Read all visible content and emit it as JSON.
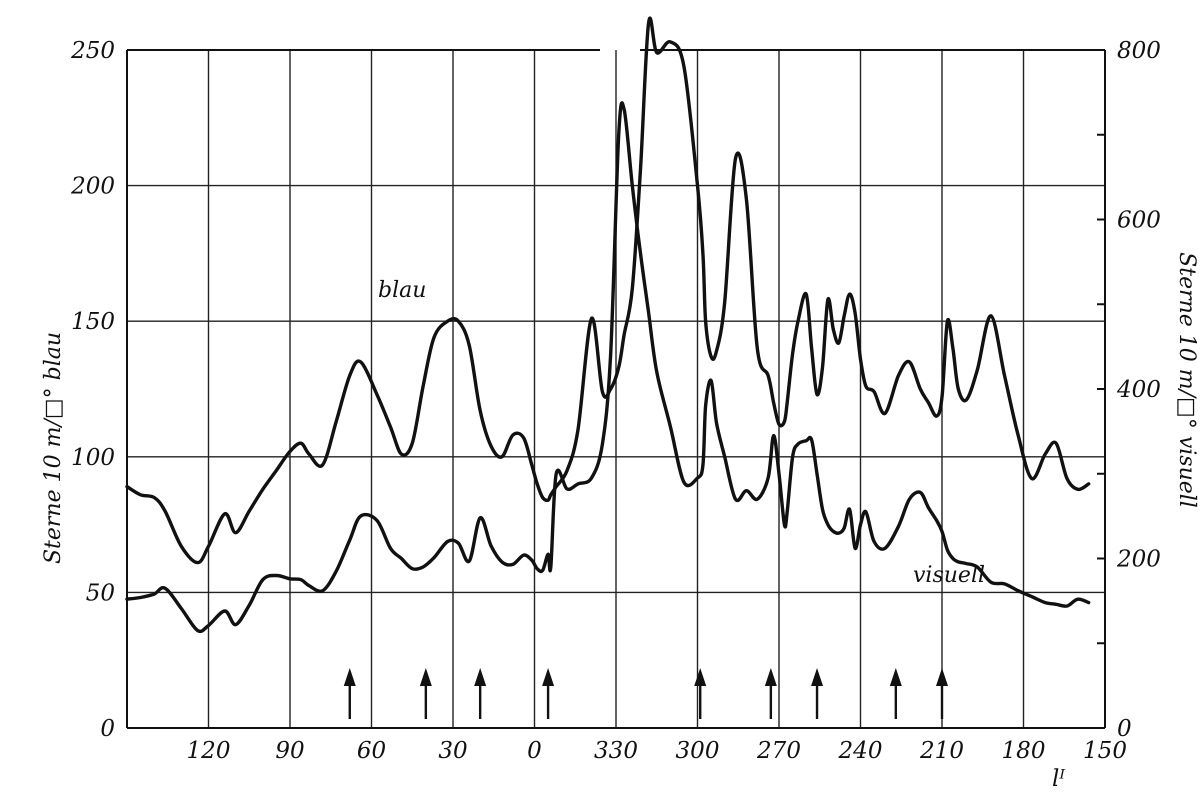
{
  "chart_data": {
    "type": "line",
    "x_axis": {
      "label": "lᴵ",
      "reversed_wrap": true,
      "tick_labels": [
        "120",
        "90",
        "60",
        "30",
        "0",
        "330",
        "300",
        "270",
        "240",
        "210",
        "180",
        "150"
      ],
      "range_label_left": "150 (wrapping through 0 to 330)",
      "grid": true
    },
    "y_left": {
      "label": "Sterne 10 m/□° blau",
      "ylim": [
        0,
        250
      ],
      "ticks": [
        "0",
        "50",
        "100",
        "150",
        "200",
        "250"
      ]
    },
    "y_right": {
      "label": "Sterne 10 m/□° visuell",
      "ylim": [
        0,
        800
      ],
      "ticks": [
        "0",
        "200",
        "400",
        "600",
        "800"
      ]
    },
    "series": [
      {
        "name": "blau",
        "axis": "left",
        "x": [
          150,
          145,
          140,
          136,
          130,
          124,
          120,
          114,
          110,
          105,
          100,
          95,
          90,
          86,
          83,
          78,
          73,
          68,
          64,
          58,
          53,
          49,
          45,
          41,
          37,
          32,
          28,
          24,
          20,
          16,
          12,
          8,
          4,
          1,
          -1,
          -3,
          -5,
          -6,
          -8,
          -12,
          -16,
          -21,
          -25,
          -28,
          -31,
          -33,
          -36,
          -39,
          -42,
          -45,
          -50,
          -55,
          -60,
          -62,
          -63,
          -65,
          -67,
          -70,
          -74,
          -78,
          -82,
          -86,
          -88,
          -90,
          -92,
          -93,
          -95,
          -97,
          -100,
          -102,
          -104,
          -106,
          -108,
          -110,
          -112,
          -114,
          -116,
          -118,
          -120,
          -122,
          -125,
          -129,
          -134,
          -138,
          -142,
          -145,
          -148,
          -150,
          -152,
          -154,
          -156,
          -159,
          -163,
          -168,
          -173,
          -178,
          -183,
          -188,
          -192,
          -196,
          -200,
          -204
        ],
        "values": [
          89,
          86,
          85,
          80,
          67,
          61,
          67,
          79,
          72,
          80,
          88,
          95,
          102,
          105,
          101,
          97,
          113,
          130,
          135,
          123,
          111,
          101,
          105,
          126,
          144,
          150,
          150,
          141,
          117,
          104,
          100,
          108,
          107,
          97,
          90,
          85,
          84,
          86,
          89,
          95,
          110,
          151,
          124,
          125,
          133,
          145,
          162,
          206,
          260,
          249,
          253,
          244,
          200,
          175,
          150,
          137,
          139,
          157,
          210,
          195,
          140,
          130,
          120,
          112,
          113,
          120,
          138,
          150,
          160,
          140,
          123,
          133,
          158,
          147,
          142,
          152,
          160,
          153,
          136,
          126,
          124,
          116,
          130,
          135,
          125,
          120,
          115,
          122,
          150,
          140,
          125,
          121,
          132,
          152,
          130,
          108,
          92,
          101,
          105,
          92,
          88,
          90
        ]
      },
      {
        "name": "visuell",
        "axis": "right",
        "x": [
          150,
          145,
          140,
          136,
          130,
          124,
          120,
          114,
          110,
          105,
          100,
          95,
          90,
          86,
          83,
          78,
          73,
          68,
          64,
          58,
          53,
          49,
          45,
          41,
          37,
          32,
          28,
          24,
          20,
          16,
          12,
          8,
          4,
          1,
          -1,
          -3,
          -5,
          -6,
          -8,
          -12,
          -16,
          -21,
          -25,
          -28,
          -31,
          -33,
          -36,
          -39,
          -42,
          -45,
          -50,
          -55,
          -60,
          -62,
          -63,
          -65,
          -67,
          -70,
          -74,
          -78,
          -82,
          -86,
          -88,
          -90,
          -92,
          -93,
          -95,
          -97,
          -100,
          -102,
          -104,
          -106,
          -108,
          -110,
          -112,
          -114,
          -116,
          -118,
          -120,
          -122,
          -125,
          -129,
          -134,
          -138,
          -142,
          -145,
          -148,
          -150,
          -152,
          -154,
          -156,
          -159,
          -163,
          -168,
          -173,
          -178,
          -183,
          -188,
          -192,
          -196,
          -200,
          -204
        ],
        "values": [
          152,
          154,
          158,
          165,
          141,
          115,
          121,
          138,
          122,
          145,
          175,
          180,
          176,
          175,
          168,
          162,
          185,
          222,
          250,
          245,
          212,
          200,
          188,
          190,
          201,
          220,
          218,
          197,
          248,
          215,
          196,
          193,
          204,
          198,
          188,
          186,
          205,
          190,
          300,
          282,
          288,
          295,
          335,
          440,
          700,
          730,
          640,
          560,
          490,
          420,
          356,
          290,
          295,
          310,
          380,
          410,
          360,
          320,
          270,
          280,
          270,
          295,
          345,
          300,
          240,
          255,
          320,
          335,
          339,
          340,
          300,
          258,
          240,
          232,
          230,
          236,
          258,
          212,
          240,
          255,
          220,
          212,
          238,
          270,
          278,
          260,
          245,
          232,
          210,
          200,
          196,
          194,
          190,
          172,
          170,
          162,
          155,
          148,
          146,
          144,
          152,
          148
        ]
      }
    ],
    "annotations": {
      "series_labels": [
        "blau",
        "visuell"
      ],
      "arrow_marks_x": [
        68,
        40,
        20,
        -5,
        -61,
        -87,
        -104,
        -133,
        -150
      ]
    }
  }
}
